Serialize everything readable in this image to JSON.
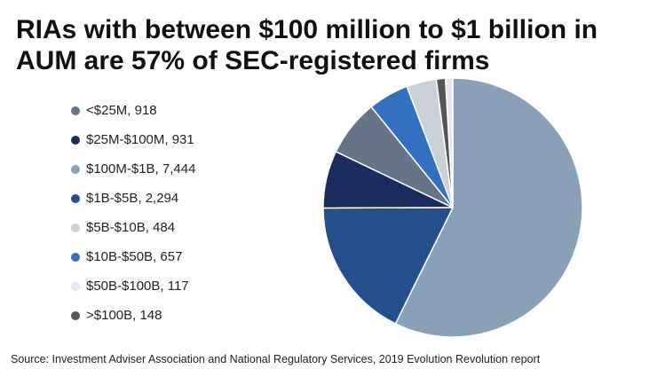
{
  "chart_data": {
    "type": "pie",
    "title_lines": [
      "RIAs with between $100 million to $1 billion in",
      "AUM are 57% of SEC-registered firms"
    ],
    "slices": [
      {
        "label": "<$25M",
        "value": 918,
        "legend": "<$25M, 918",
        "color": "#667488"
      },
      {
        "label": "$25M-$100M",
        "value": 931,
        "legend": "$25M-$100M, 931",
        "color": "#1a2d5e"
      },
      {
        "label": "$100M-$1B",
        "value": 7444,
        "legend": "$100M-$1B, 7,444",
        "color": "#8aa0b6"
      },
      {
        "label": "$1B-$5B",
        "value": 2294,
        "legend": "$1B-$5B, 2,294",
        "color": "#244f8c"
      },
      {
        "label": "$5B-$10B",
        "value": 484,
        "legend": "$5B-$10B, 484",
        "color": "#c9d0d8"
      },
      {
        "label": "$10B-$50B",
        "value": 657,
        "legend": "$10B-$50B, 657",
        "color": "#3370c0"
      },
      {
        "label": "$50B-$100B",
        "value": 117,
        "legend": "$50B-$100B, 117",
        "color": "#e6e6f2"
      },
      {
        "label": ">$100B",
        "value": 148,
        "legend": ">$100B, 148",
        "color": "#555555"
      }
    ],
    "draw_order": [
      2,
      3,
      1,
      0,
      5,
      4,
      7,
      6
    ],
    "source": "Source: Investment Adviser Association and National Regulatory Services, 2019 Evolution Revolution report"
  }
}
